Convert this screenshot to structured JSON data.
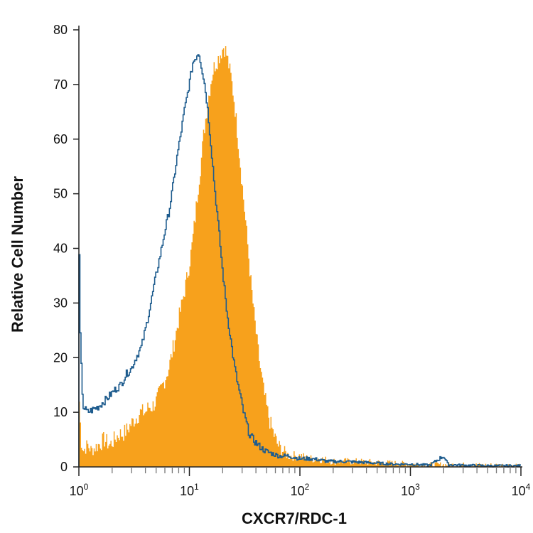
{
  "chart_data": {
    "type": "histogram",
    "title": "",
    "xlabel": "CXCR7/RDC-1",
    "ylabel": "Relative Cell Number",
    "x_scale": "log",
    "xlim": [
      1,
      10000
    ],
    "ylim": [
      0,
      80
    ],
    "x_ticks": [
      {
        "value": 1,
        "base": "10",
        "exp": "0"
      },
      {
        "value": 10,
        "base": "10",
        "exp": "1"
      },
      {
        "value": 100,
        "base": "10",
        "exp": "2"
      },
      {
        "value": 1000,
        "base": "10",
        "exp": "3"
      },
      {
        "value": 10000,
        "base": "10",
        "exp": "4"
      }
    ],
    "y_ticks": [
      "0",
      "10",
      "20",
      "30",
      "40",
      "50",
      "60",
      "70",
      "80"
    ],
    "grid": false,
    "legend": "none",
    "series": [
      {
        "style": "filled",
        "color": "#F7A11C",
        "points": [
          [
            1.0,
            14
          ],
          [
            1.05,
            5
          ],
          [
            1.1,
            3
          ],
          [
            1.2,
            4
          ],
          [
            1.3,
            3
          ],
          [
            1.5,
            4
          ],
          [
            1.7,
            5
          ],
          [
            1.9,
            4
          ],
          [
            2.1,
            5
          ],
          [
            2.3,
            6
          ],
          [
            2.5,
            6
          ],
          [
            2.8,
            7
          ],
          [
            3.0,
            8
          ],
          [
            3.3,
            9
          ],
          [
            3.6,
            10
          ],
          [
            4.0,
            10
          ],
          [
            4.3,
            11
          ],
          [
            4.6,
            11
          ],
          [
            5.0,
            12
          ],
          [
            5.5,
            14
          ],
          [
            6.0,
            16
          ],
          [
            6.5,
            18
          ],
          [
            7.0,
            21
          ],
          [
            7.5,
            24
          ],
          [
            8.0,
            27
          ],
          [
            8.6,
            30
          ],
          [
            9.2,
            33
          ],
          [
            9.8,
            36
          ],
          [
            10.5,
            40
          ],
          [
            11.2,
            45
          ],
          [
            12.0,
            51
          ],
          [
            12.8,
            56
          ],
          [
            13.5,
            61
          ],
          [
            14.3,
            65
          ],
          [
            15.0,
            68
          ],
          [
            15.8,
            71
          ],
          [
            16.6,
            73
          ],
          [
            17.5,
            74
          ],
          [
            18.5,
            75
          ],
          [
            19.5,
            76
          ],
          [
            20.5,
            77
          ],
          [
            21.5,
            76
          ],
          [
            22.5,
            74
          ],
          [
            24.0,
            71
          ],
          [
            25.5,
            67
          ],
          [
            27.0,
            62
          ],
          [
            28.5,
            57
          ],
          [
            30.0,
            52
          ],
          [
            32.0,
            46
          ],
          [
            34.0,
            40
          ],
          [
            36.0,
            34
          ],
          [
            38.5,
            28
          ],
          [
            41.0,
            23
          ],
          [
            44.0,
            18
          ],
          [
            47.0,
            14
          ],
          [
            50.0,
            11
          ],
          [
            54.0,
            8
          ],
          [
            58.0,
            6
          ],
          [
            63.0,
            4
          ],
          [
            70.0,
            3
          ],
          [
            80.0,
            2
          ],
          [
            90.0,
            2
          ],
          [
            100.0,
            2
          ],
          [
            120.0,
            1.5
          ],
          [
            150.0,
            1.5
          ],
          [
            200.0,
            1
          ],
          [
            300.0,
            1
          ],
          [
            500.0,
            0.8
          ],
          [
            1000.0,
            0.5
          ],
          [
            2000.0,
            0.4
          ],
          [
            5000.0,
            0.3
          ],
          [
            10000.0,
            0.3
          ]
        ]
      },
      {
        "style": "outline",
        "color": "#1E5C8E",
        "points": [
          [
            1.0,
            46
          ],
          [
            1.03,
            25
          ],
          [
            1.07,
            15
          ],
          [
            1.1,
            11
          ],
          [
            1.2,
            10
          ],
          [
            1.35,
            10.5
          ],
          [
            1.5,
            11
          ],
          [
            1.7,
            12
          ],
          [
            1.9,
            13
          ],
          [
            2.1,
            14
          ],
          [
            2.4,
            15
          ],
          [
            2.7,
            17
          ],
          [
            3.0,
            18
          ],
          [
            3.3,
            20
          ],
          [
            3.7,
            22
          ],
          [
            4.1,
            26
          ],
          [
            4.5,
            30
          ],
          [
            5.0,
            35
          ],
          [
            5.5,
            39
          ],
          [
            6.0,
            43
          ],
          [
            6.6,
            47
          ],
          [
            7.2,
            52
          ],
          [
            7.8,
            57
          ],
          [
            8.4,
            61
          ],
          [
            9.0,
            65
          ],
          [
            9.6,
            68
          ],
          [
            10.2,
            71
          ],
          [
            10.8,
            74
          ],
          [
            11.5,
            75
          ],
          [
            12.2,
            76
          ],
          [
            13.0,
            73
          ],
          [
            13.8,
            70
          ],
          [
            14.6,
            66
          ],
          [
            15.4,
            61
          ],
          [
            16.2,
            56
          ],
          [
            17.0,
            51
          ],
          [
            18.0,
            46
          ],
          [
            19.0,
            41
          ],
          [
            20.0,
            36
          ],
          [
            21.0,
            32
          ],
          [
            22.0,
            28
          ],
          [
            23.5,
            24
          ],
          [
            25.0,
            20
          ],
          [
            27.0,
            16
          ],
          [
            29.0,
            13
          ],
          [
            31.0,
            10
          ],
          [
            33.0,
            8
          ],
          [
            35.0,
            6
          ],
          [
            38.0,
            5
          ],
          [
            42.0,
            4
          ],
          [
            48.0,
            3
          ],
          [
            55.0,
            2.5
          ],
          [
            65.0,
            2
          ],
          [
            80.0,
            2
          ],
          [
            100.0,
            1.5
          ],
          [
            130.0,
            1.5
          ],
          [
            180.0,
            1
          ],
          [
            250.0,
            1
          ],
          [
            400.0,
            0.8
          ],
          [
            700.0,
            0.5
          ],
          [
            1000.0,
            0.5
          ],
          [
            1500.0,
            0.3
          ],
          [
            2000.0,
            2
          ],
          [
            2200.0,
            0.4
          ],
          [
            3000.0,
            0.3
          ],
          [
            5000.0,
            0.2
          ],
          [
            10000.0,
            0.2
          ]
        ]
      }
    ]
  }
}
